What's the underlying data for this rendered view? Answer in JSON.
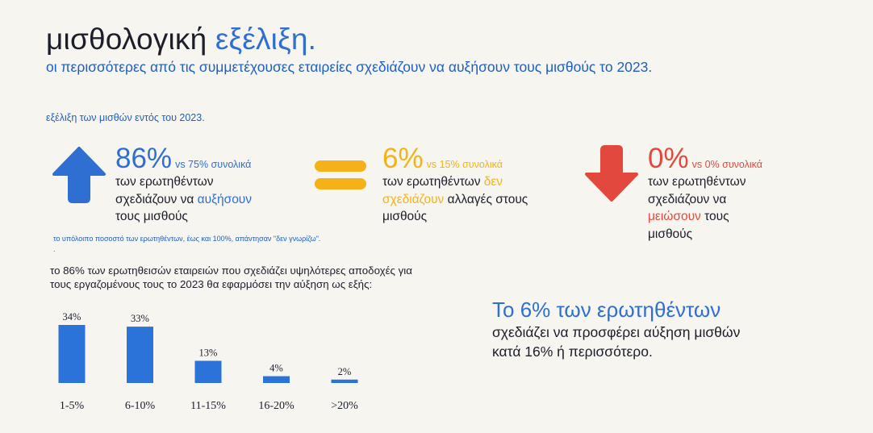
{
  "header": {
    "title_part1": "μισθολογική",
    "title_part2": "εξέλιξη.",
    "subtitle": "οι περισσότερες από τις συμμετέχουσες εταιρείες σχεδιάζουν να αυξήσουν τους μισθούς το 2023."
  },
  "section_label": "εξέλιξη των μισθών εντός του 2023.",
  "stats": {
    "increase": {
      "value": "86%",
      "vs": "vs 75% συνολικά",
      "line1": "των ερωτηθέντων",
      "line2_a": "σχεδιάζουν να ",
      "line2_b": "αυξήσουν",
      "line3": "τους μισθούς",
      "icon": "arrow-up-icon",
      "color": "#2f6fd1"
    },
    "same": {
      "value": "6%",
      "vs": "vs 15% συνολικά",
      "line1_a": "των ερωτηθέντων ",
      "line1_b": "δεν",
      "line2_a": "σχεδιάζουν",
      "line2_b": " αλλαγές στους",
      "line3": "μισθούς",
      "icon": "equals-icon",
      "color": "#f4b218"
    },
    "decrease": {
      "value": "0%",
      "vs": "vs 0% συνολικά",
      "line1": "των ερωτηθέντων",
      "line2": "σχεδιάζουν να",
      "line3_a": "μειώσουν",
      "line3_b": " τους",
      "line4": "μισθούς",
      "icon": "arrow-down-icon",
      "color": "#e2483d"
    }
  },
  "note": "το υπόλοιπο ποσοστό των ερωτηθέντων, έως και 100%, απάντησαν  \"δεν γνωρίζω\".",
  "note_dot": ".",
  "chart_intro": "το 86% των ερωτηθεισών εταιρειών που σχεδιάζει υψηλότερες αποδοχές για τους εργαζομένους τους το 2023 θα εφαρμόσει την αύξηση ως εξής:",
  "chart_data": {
    "type": "bar",
    "categories": [
      "1-5%",
      "6-10%",
      "11-15%",
      "16-20%",
      ">20%"
    ],
    "values": [
      34,
      33,
      13,
      4,
      2
    ],
    "value_labels": [
      "34%",
      "33%",
      "13%",
      "4%",
      "2%"
    ],
    "title": "",
    "xlabel": "",
    "ylabel": "",
    "bar_color": "#2b73d8",
    "grid": false
  },
  "callout": {
    "headline": "Το 6% των ερωτηθέντων",
    "line1": "σχεδιάζει να προσφέρει αύξηση μισθών",
    "line2": "κατά 16% ή περισσότερο."
  }
}
